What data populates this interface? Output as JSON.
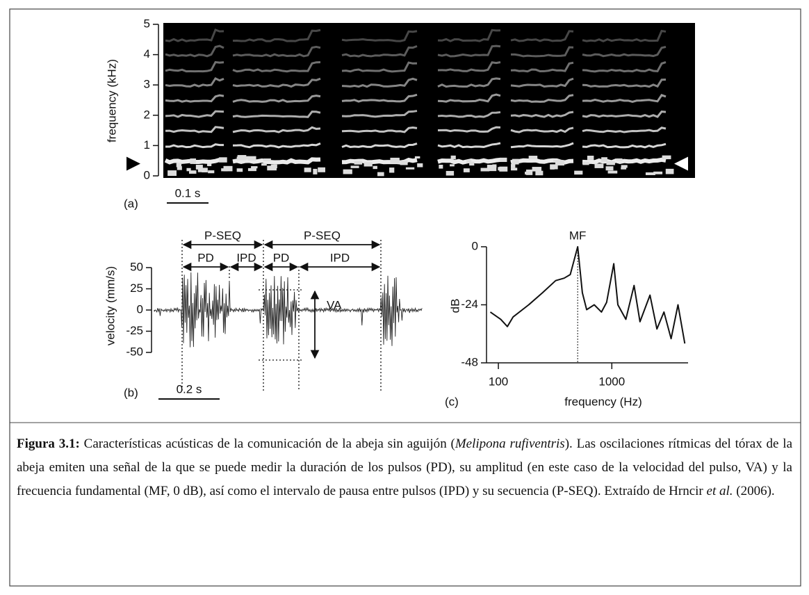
{
  "figure": {
    "panel_a": {
      "label": "(a)",
      "ylabel": "frequency (kHz)",
      "ylim": [
        0,
        5
      ],
      "yticks": [
        0,
        1,
        2,
        3,
        4,
        5
      ],
      "scale_bar": "0.1 s",
      "marker_khz": 0.4
    },
    "panel_b": {
      "label": "(b)",
      "ylabel": "velocity (mm/s)",
      "ylim": [
        -50,
        50
      ],
      "yticks": [
        -50,
        -25,
        0,
        25,
        50
      ],
      "scale_bar": "0.2 s",
      "annotations": [
        "P-SEQ",
        "P-SEQ",
        "PD",
        "IPD",
        "PD",
        "IPD",
        "VA"
      ]
    },
    "panel_c": {
      "type": "line",
      "label": "(c)",
      "xlabel": "frequency (Hz)",
      "ylabel": "dB",
      "log_x": true,
      "xlim": [
        82,
        4700
      ],
      "ylim": [
        -48,
        0
      ],
      "xticks": [
        100,
        1000
      ],
      "yticks": [
        -48,
        -24,
        0
      ],
      "annotation": "MF",
      "mf_frequency": 500,
      "color": "#111111",
      "x": [
        85,
        105,
        120,
        135,
        185,
        245,
        320,
        380,
        430,
        500,
        550,
        600,
        700,
        810,
        900,
        1040,
        1130,
        1330,
        1570,
        1770,
        2170,
        2500,
        2880,
        3330,
        3830,
        4400
      ],
      "values": [
        -27,
        -30,
        -33,
        -29,
        -24,
        -19,
        -14,
        -13,
        -11.5,
        0,
        -19,
        -26,
        -24,
        -27,
        -23,
        -7,
        -24,
        -30,
        -16,
        -31,
        -20,
        -34,
        -27,
        -38,
        -24,
        -40
      ]
    }
  },
  "caption": {
    "label": "Figura 3.1:",
    "segments": [
      {
        "text": " Características acústicas de la comunicación de la abeja sin aguijón (",
        "italic": false
      },
      {
        "text": "Melipona rufiventris",
        "italic": true
      },
      {
        "text": "). Las oscilaciones rítmicas del tórax de la abeja emiten una señal de la que se puede medir la duración de los pulsos (PD), su amplitud (en este caso de la velocidad del pulso, VA) y la frecuencia fundamental (MF, 0 dB),  así como el intervalo de pausa entre pulsos (IPD) y su secuencia (P-SEQ). Extraído de Hrncir ",
        "italic": false
      },
      {
        "text": "et al.",
        "italic": true
      },
      {
        "text": " (2006).",
        "italic": false
      }
    ]
  }
}
